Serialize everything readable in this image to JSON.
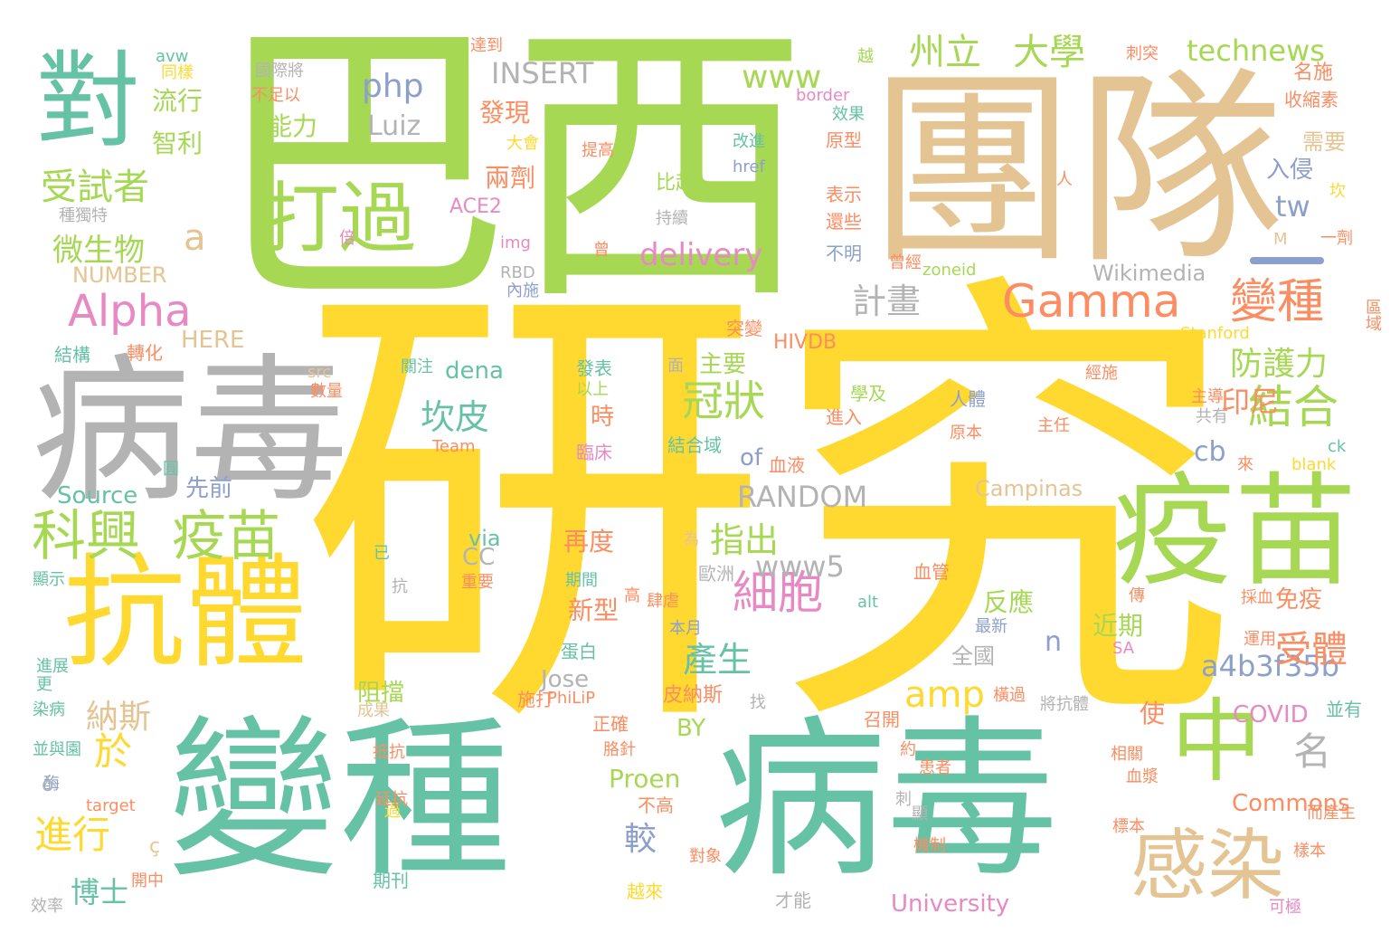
{
  "palette": {
    "yellow": "#ffd92f",
    "green": "#a6d854",
    "teal": "#66c2a5",
    "orange": "#fc8d62",
    "blue": "#8da0cb",
    "pink": "#e78ac3",
    "tan": "#e5c494",
    "gray": "#b3b3b3"
  },
  "words": [
    "研究",
    "巴西",
    "團隊",
    "病毒",
    "變種",
    "病毒",
    "疫苗",
    "抗體",
    "對",
    "中",
    "感染",
    "打過",
    "科興",
    "疫苗",
    "Gamma",
    "變種",
    "結合",
    "Alpha",
    "受試者",
    "州立",
    "大學",
    "technews",
    "細胞",
    "冠狀",
    "坎皮",
    "amp",
    "a4b3f35b",
    "www",
    "php",
    "delivery",
    "指出",
    "計畫",
    "防護力",
    "受體",
    "進行",
    "於",
    "名",
    "微生物",
    "a",
    "INSERT",
    "RANDOM",
    "www5",
    "產生",
    "較",
    "納斯",
    "博士",
    "cb",
    "印尼",
    "tw",
    "入侵",
    "流行",
    "智利",
    "能力",
    "Luiz",
    "發現",
    "兩劑",
    "ACE2",
    "主要",
    "dena",
    "of",
    "Source",
    "先前",
    "HERE",
    "NUMBER",
    "BY",
    "Proen",
    "Jose",
    "Wikimedia",
    "Campinas",
    "Commons",
    "University",
    "COVID",
    "時",
    "再度",
    "新型",
    "反應",
    "阻擋",
    "近期",
    "免疫",
    "使",
    "n",
    "全國",
    "CC",
    "via",
    "需要",
    "名施",
    "收縮素",
    "原型",
    "表示",
    "還些",
    "不明",
    "曾經",
    "zoneid",
    "HIVDB",
    "Stanford",
    "區域",
    "比起",
    "持續",
    "img",
    "RBD",
    "內施",
    "發表",
    "以上",
    "臨床",
    "結合域",
    "血液",
    "學及",
    "進入",
    "人體",
    "原本",
    "主任",
    "主導",
    "共有",
    "經施",
    "突變",
    "血管",
    "歐洲",
    "肆虐",
    "本月",
    "最新",
    "皮納斯",
    "施打",
    "PhiLiP",
    "成果",
    "找",
    "召開",
    "將抗體",
    "橫過",
    "並有",
    "正確",
    "胳針",
    "期刊",
    "越來",
    "不高",
    "才能",
    "約",
    "患者",
    "機制",
    "可極",
    "相關",
    "血漿",
    "標本",
    "而產生",
    "樣本",
    "target",
    "開中",
    "效率",
    "對象",
    "過",
    "刺",
    "顯",
    "抵抗",
    "延抗",
    "並與園",
    "染病",
    "酶",
    "進展",
    "更",
    "顯示",
    "數量",
    "src",
    "關注",
    "轉化",
    "結構",
    "蛋白",
    "高",
    "抗",
    "已",
    "重要",
    "期間",
    "alt",
    "傳",
    "採血",
    "運用",
    "SA",
    "Team",
    "圓",
    "來",
    "blank",
    "ck",
    "avw",
    "同樣",
    "越",
    "國際將",
    "不足以",
    "border",
    "效果",
    "改進",
    "href",
    "大會",
    "提高",
    "達到",
    "刺突",
    "人",
    "坎",
    "種獨特",
    "倍",
    "曾",
    "一劑",
    "M",
    "ó",
    "ç",
    "面",
    "為"
  ]
}
